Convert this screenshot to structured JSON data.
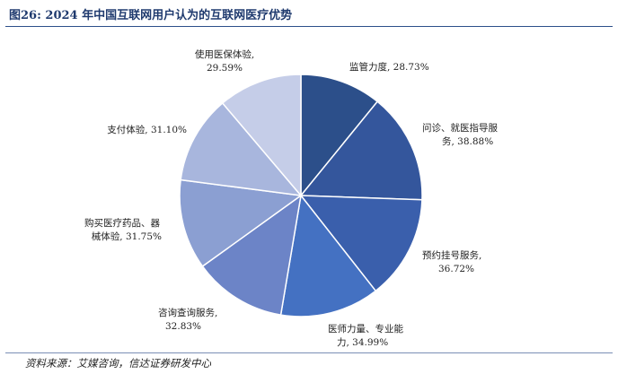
{
  "title": "图26: 2024 年中国互联网用户认为的互联网医疗优势",
  "source": "资料来源：艾媒咨询，信达证券研发中心",
  "colors": [
    "#2c4f8a",
    "#34569c",
    "#3a5fac",
    "#4471c2",
    "#6c84c7",
    "#8b9fd2",
    "#a8b6dd",
    "#c5cde8"
  ],
  "chart_data": {
    "type": "pie",
    "title": "",
    "slices": [
      {
        "label": "监管力度",
        "value": 28.73,
        "text": "28.73%"
      },
      {
        "label": "问诊、就医指导服务",
        "value": 38.88,
        "text": "38.88%"
      },
      {
        "label": "预约挂号服务",
        "value": 36.72,
        "text": "36.72%"
      },
      {
        "label": "医师力量、专业能力",
        "value": 34.99,
        "text": "34.99%"
      },
      {
        "label": "咨询查询服务",
        "value": 32.83,
        "text": "32.83%"
      },
      {
        "label": "购买医疗药品、器械体验",
        "value": 31.75,
        "text": "31.75%"
      },
      {
        "label": "支付体验",
        "value": 31.1,
        "text": "31.10%"
      },
      {
        "label": "使用医保体验",
        "value": 29.59,
        "text": "29.59%"
      }
    ],
    "label_lines": [
      [
        "监管力度, 28.73%"
      ],
      [
        "问诊、就医指导服",
        "务, 38.88%"
      ],
      [
        "预约挂号服务,",
        "36.72%"
      ],
      [
        "医师力量、专业能",
        "力, 34.99%"
      ],
      [
        "咨询查询服务,",
        "32.83%"
      ],
      [
        "购买医疗药品、器",
        "械体验, 31.75%"
      ],
      [
        "支付体验, 31.10%"
      ],
      [
        "使用医保体验,",
        "29.59%"
      ]
    ]
  }
}
